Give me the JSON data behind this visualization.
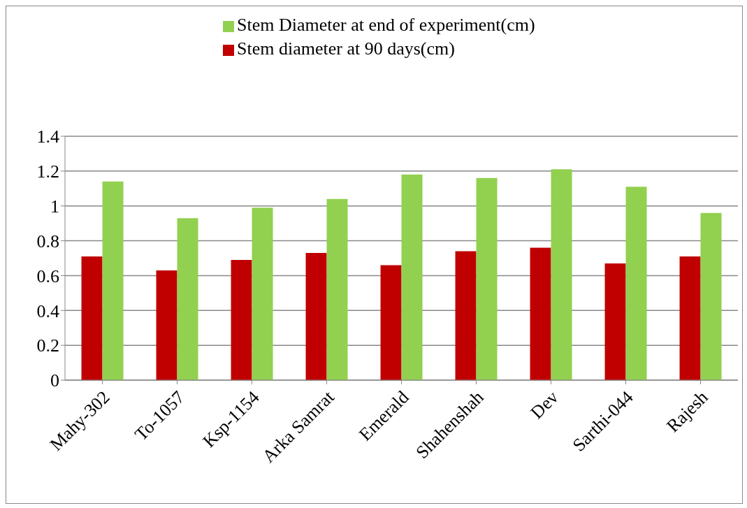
{
  "chart_data": {
    "type": "bar",
    "categories": [
      "Mahy-302",
      "To-1057",
      "Ksp-1154",
      "Arka Samrat",
      "Emerald",
      "Shahenshah",
      "Dev",
      "Sarthi-044",
      "Rajesh"
    ],
    "series": [
      {
        "name": "Stem diameter at 90 days(cm)",
        "color": "#c00000",
        "values": [
          0.71,
          0.63,
          0.69,
          0.73,
          0.66,
          0.74,
          0.76,
          0.67,
          0.71
        ]
      },
      {
        "name": "Stem Diameter at end of experiment(cm)",
        "color": "#92d050",
        "values": [
          1.14,
          0.93,
          0.99,
          1.04,
          1.18,
          1.16,
          1.21,
          1.11,
          0.96
        ]
      }
    ],
    "ylim": [
      0,
      1.4
    ],
    "yticks": [
      0,
      0.2,
      0.4,
      0.6,
      0.8,
      1,
      1.2,
      1.4
    ],
    "grid": "y",
    "legend": "top"
  }
}
